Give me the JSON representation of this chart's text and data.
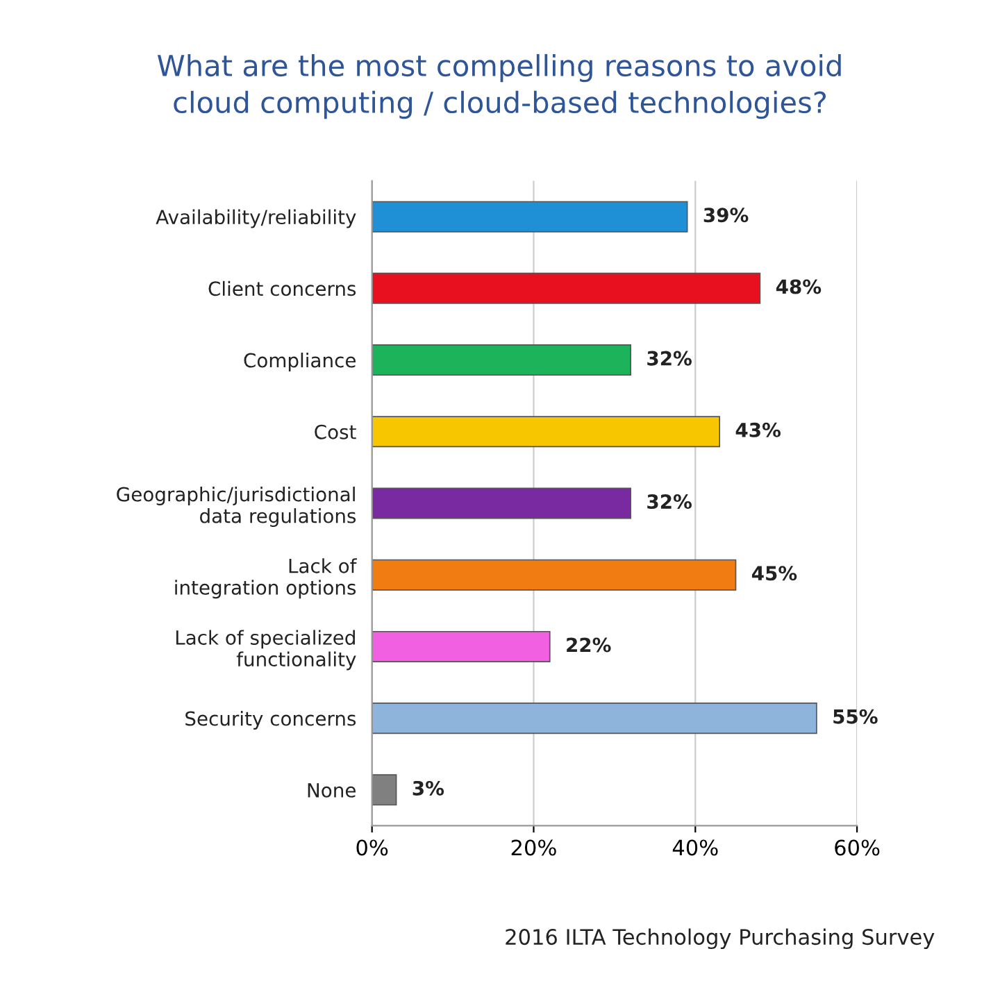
{
  "chart_data": {
    "type": "bar",
    "orientation": "horizontal",
    "title": "What are the most compelling reasons to avoid\ncloud computing / cloud-based technologies?",
    "categories": [
      "Availability/reliability",
      "Client concerns",
      "Compliance",
      "Cost",
      "Geographic/jurisdictional\ndata regulations",
      "Lack of\nintegration options",
      "Lack of specialized\nfunctionality",
      "Security concerns",
      "None"
    ],
    "values": [
      39,
      48,
      32,
      43,
      32,
      45,
      22,
      55,
      3
    ],
    "value_labels": [
      "39%",
      "48%",
      "32%",
      "43%",
      "32%",
      "45%",
      "22%",
      "55%",
      "3%"
    ],
    "colors": [
      "#1f8fd6",
      "#e8101e",
      "#1db35a",
      "#f7c600",
      "#7a2aa0",
      "#f07c12",
      "#f060e0",
      "#8fb4dc",
      "#808080"
    ],
    "xlim": [
      0,
      60
    ],
    "xticks": [
      {
        "value": 0,
        "label": "0%"
      },
      {
        "value": 20,
        "label": "20%"
      },
      {
        "value": 40,
        "label": "40%"
      },
      {
        "value": 60,
        "label": "60%"
      }
    ],
    "grid": "x",
    "annotations": [
      "2016 ILTA Technology Purchasing Survey"
    ]
  }
}
